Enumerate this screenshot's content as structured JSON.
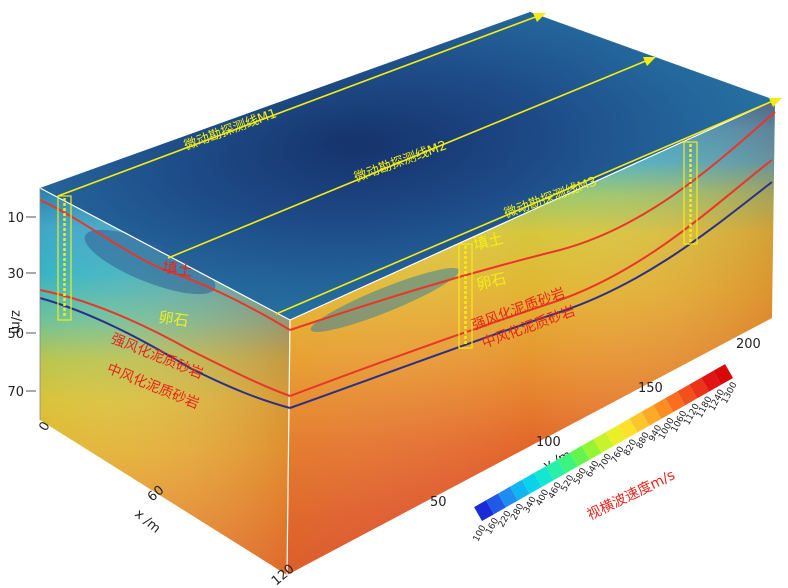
{
  "survey_lines": [
    "微动勘探测线M1",
    "微动勘探测线M2",
    "微动勘探测线M3"
  ],
  "layers": {
    "fill": "填土",
    "pebble": "卵石",
    "strong": "强风化泥质砂岩",
    "medium": "中风化泥质砂岩"
  },
  "z_axis": {
    "label": "z/m",
    "ticks": [
      "10",
      "30",
      "50",
      "70"
    ]
  },
  "x_axis": {
    "label": "x /m",
    "ticks": [
      "0",
      "60",
      "120"
    ]
  },
  "y_axis": {
    "label": "y /m",
    "ticks": [
      "50",
      "100",
      "150",
      "200"
    ]
  },
  "colorbar": {
    "title": "视横波速度m/s",
    "ticks": [
      "100",
      "160",
      "220",
      "280",
      "340",
      "400",
      "460",
      "520",
      "580",
      "640",
      "700",
      "760",
      "820",
      "880",
      "940",
      "1000",
      "1060",
      "1120",
      "1180",
      "1240",
      "1300"
    ],
    "colors": [
      "#1a2ad6",
      "#1e5ae6",
      "#1e8cf0",
      "#12b4f2",
      "#0ad2ec",
      "#14e6d2",
      "#28f0a8",
      "#3cf37c",
      "#64f450",
      "#96f532",
      "#c8f22a",
      "#eaf028",
      "#fce12a",
      "#fdc62a",
      "#fdaa28",
      "#fc8c24",
      "#f96e20",
      "#f4501c",
      "#ec3218",
      "#e01414",
      "#d80808"
    ]
  },
  "colors": {
    "boundary_red": "#e8362a",
    "boundary_navy": "#2b2f86",
    "line_yellow": "#f7ec12",
    "label_red": "#e8241c",
    "label_yellow": "#f3ee16"
  }
}
